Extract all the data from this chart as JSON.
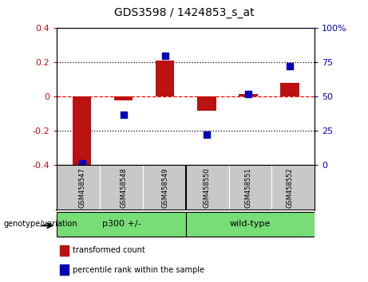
{
  "title": "GDS3598 / 1424853_s_at",
  "samples": [
    "GSM458547",
    "GSM458548",
    "GSM458549",
    "GSM458550",
    "GSM458551",
    "GSM458552"
  ],
  "bar_values": [
    -0.41,
    -0.02,
    0.21,
    -0.085,
    0.015,
    0.08
  ],
  "dot_values": [
    1.0,
    37.0,
    80.0,
    22.0,
    52.0,
    72.0
  ],
  "bar_color": "#bb1111",
  "dot_color": "#0000bb",
  "ylim_left": [
    -0.4,
    0.4
  ],
  "ylim_right": [
    0,
    100
  ],
  "yticks_left": [
    -0.4,
    -0.2,
    0.0,
    0.2,
    0.4
  ],
  "yticks_right": [
    0,
    25,
    50,
    75,
    100
  ],
  "ytick_labels_left": [
    "-0.4",
    "-0.2",
    "0",
    "0.2",
    "0.4"
  ],
  "ytick_labels_right": [
    "0",
    "25",
    "50",
    "75",
    "100%"
  ],
  "groups": [
    {
      "label": "p300 +/-",
      "indices": [
        0,
        1,
        2
      ],
      "color": "#77dd77"
    },
    {
      "label": "wild-type",
      "indices": [
        3,
        4,
        5
      ],
      "color": "#77dd77"
    }
  ],
  "group_separator": 2.5,
  "bottom_label": "genotype/variation",
  "legend_items": [
    {
      "label": "transformed count",
      "color": "#bb1111"
    },
    {
      "label": "percentile rank within the sample",
      "color": "#0000bb"
    }
  ],
  "bar_width": 0.45,
  "background_color": "#ffffff",
  "sample_area_color": "#c8c8c8",
  "group_area_color": "#77dd77"
}
